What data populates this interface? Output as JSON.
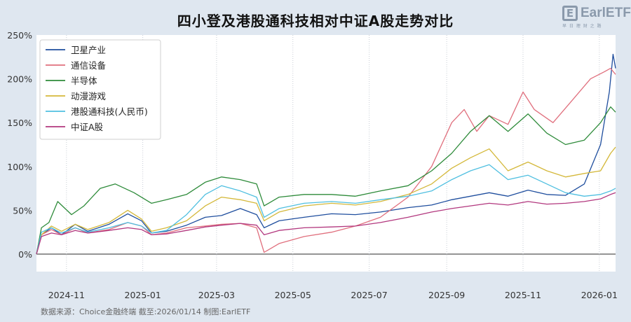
{
  "title": "四小登及港股通科技相对中证A股走势对比",
  "logo": {
    "mark": "E",
    "text": "EarlETF",
    "sub": "早 日 理 财 之 路"
  },
  "footer": "数据来源：Choice金融终端 截至:2026/01/14 制图:EarlETF",
  "chart_data": {
    "type": "line",
    "title": "四小登及港股通科技相对中证A股走势对比",
    "xlabel": "",
    "ylabel": "",
    "x_ticks": [
      "2024-11",
      "2025-01",
      "2025-03",
      "2025-05",
      "2025-07",
      "2025-09",
      "2025-11",
      "2026-01"
    ],
    "x_range": [
      "2024-10-08",
      "2026-01-14"
    ],
    "ylim": [
      -20,
      250
    ],
    "y_ticks": [
      "0%",
      "50%",
      "100%",
      "150%",
      "200%",
      "250%"
    ],
    "y_tick_values": [
      0,
      50,
      100,
      150,
      200,
      250
    ],
    "grid": false,
    "legend_position": "top-left",
    "series": [
      {
        "name": "卫星产业",
        "color": "#1f4e9e",
        "points": [
          [
            "2024-10-08",
            0
          ],
          [
            "2024-10-12",
            22
          ],
          [
            "2024-10-20",
            30
          ],
          [
            "2024-10-28",
            22
          ],
          [
            "2024-11-08",
            34
          ],
          [
            "2024-11-18",
            26
          ],
          [
            "2024-12-05",
            34
          ],
          [
            "2024-12-20",
            46
          ],
          [
            "2024-12-31",
            38
          ],
          [
            "2025-01-08",
            24
          ],
          [
            "2025-01-20",
            26
          ],
          [
            "2025-02-05",
            33
          ],
          [
            "2025-02-20",
            42
          ],
          [
            "2025-03-05",
            44
          ],
          [
            "2025-03-20",
            52
          ],
          [
            "2025-04-02",
            45
          ],
          [
            "2025-04-08",
            30
          ],
          [
            "2025-04-20",
            38
          ],
          [
            "2025-05-10",
            42
          ],
          [
            "2025-06-01",
            46
          ],
          [
            "2025-06-20",
            45
          ],
          [
            "2025-07-10",
            48
          ],
          [
            "2025-08-01",
            53
          ],
          [
            "2025-08-20",
            56
          ],
          [
            "2025-09-05",
            62
          ],
          [
            "2025-09-20",
            66
          ],
          [
            "2025-10-05",
            70
          ],
          [
            "2025-10-20",
            66
          ],
          [
            "2025-11-05",
            73
          ],
          [
            "2025-11-20",
            68
          ],
          [
            "2025-12-05",
            67
          ],
          [
            "2025-12-20",
            80
          ],
          [
            "2026-01-02",
            125
          ],
          [
            "2026-01-09",
            185
          ],
          [
            "2026-01-12",
            228
          ],
          [
            "2026-01-14",
            212
          ]
        ]
      },
      {
        "name": "通信设备",
        "color": "#e06f7d",
        "points": [
          [
            "2024-10-08",
            0
          ],
          [
            "2024-10-12",
            22
          ],
          [
            "2024-10-20",
            28
          ],
          [
            "2024-10-28",
            22
          ],
          [
            "2024-11-08",
            30
          ],
          [
            "2024-11-18",
            24
          ],
          [
            "2024-12-05",
            28
          ],
          [
            "2024-12-20",
            36
          ],
          [
            "2024-12-31",
            32
          ],
          [
            "2025-01-08",
            22
          ],
          [
            "2025-01-20",
            24
          ],
          [
            "2025-02-05",
            30
          ],
          [
            "2025-02-20",
            32
          ],
          [
            "2025-03-05",
            34
          ],
          [
            "2025-03-20",
            35
          ],
          [
            "2025-04-02",
            30
          ],
          [
            "2025-04-08",
            2
          ],
          [
            "2025-04-20",
            12
          ],
          [
            "2025-05-10",
            20
          ],
          [
            "2025-06-01",
            25
          ],
          [
            "2025-06-20",
            32
          ],
          [
            "2025-07-10",
            42
          ],
          [
            "2025-08-01",
            65
          ],
          [
            "2025-08-20",
            100
          ],
          [
            "2025-09-05",
            150
          ],
          [
            "2025-09-15",
            165
          ],
          [
            "2025-09-25",
            140
          ],
          [
            "2025-10-05",
            158
          ],
          [
            "2025-10-20",
            148
          ],
          [
            "2025-11-01",
            185
          ],
          [
            "2025-11-10",
            165
          ],
          [
            "2025-11-25",
            150
          ],
          [
            "2025-12-10",
            175
          ],
          [
            "2025-12-25",
            200
          ],
          [
            "2026-01-05",
            208
          ],
          [
            "2026-01-10",
            212
          ],
          [
            "2026-01-14",
            205
          ]
        ]
      },
      {
        "name": "半导体",
        "color": "#2e8b3a",
        "points": [
          [
            "2024-10-08",
            0
          ],
          [
            "2024-10-12",
            30
          ],
          [
            "2024-10-18",
            36
          ],
          [
            "2024-10-25",
            60
          ],
          [
            "2024-11-05",
            45
          ],
          [
            "2024-11-15",
            55
          ],
          [
            "2024-11-28",
            75
          ],
          [
            "2024-12-10",
            80
          ],
          [
            "2024-12-25",
            70
          ],
          [
            "2025-01-08",
            58
          ],
          [
            "2025-01-20",
            62
          ],
          [
            "2025-02-05",
            68
          ],
          [
            "2025-02-20",
            82
          ],
          [
            "2025-03-05",
            88
          ],
          [
            "2025-03-20",
            85
          ],
          [
            "2025-04-02",
            80
          ],
          [
            "2025-04-08",
            55
          ],
          [
            "2025-04-20",
            65
          ],
          [
            "2025-05-10",
            68
          ],
          [
            "2025-06-01",
            68
          ],
          [
            "2025-06-20",
            66
          ],
          [
            "2025-07-10",
            72
          ],
          [
            "2025-08-01",
            78
          ],
          [
            "2025-08-20",
            95
          ],
          [
            "2025-09-05",
            115
          ],
          [
            "2025-09-20",
            140
          ],
          [
            "2025-10-05",
            158
          ],
          [
            "2025-10-20",
            140
          ],
          [
            "2025-11-05",
            160
          ],
          [
            "2025-11-20",
            138
          ],
          [
            "2025-12-05",
            125
          ],
          [
            "2025-12-20",
            130
          ],
          [
            "2026-01-02",
            150
          ],
          [
            "2026-01-10",
            168
          ],
          [
            "2026-01-14",
            162
          ]
        ]
      },
      {
        "name": "动漫游戏",
        "color": "#d4b83a",
        "points": [
          [
            "2024-10-08",
            0
          ],
          [
            "2024-10-12",
            22
          ],
          [
            "2024-10-20",
            32
          ],
          [
            "2024-10-28",
            26
          ],
          [
            "2024-11-08",
            34
          ],
          [
            "2024-11-18",
            28
          ],
          [
            "2024-12-05",
            36
          ],
          [
            "2024-12-20",
            50
          ],
          [
            "2024-12-31",
            40
          ],
          [
            "2025-01-08",
            26
          ],
          [
            "2025-01-20",
            30
          ],
          [
            "2025-02-05",
            38
          ],
          [
            "2025-02-20",
            55
          ],
          [
            "2025-03-05",
            65
          ],
          [
            "2025-03-20",
            62
          ],
          [
            "2025-04-02",
            58
          ],
          [
            "2025-04-08",
            38
          ],
          [
            "2025-04-20",
            48
          ],
          [
            "2025-05-10",
            55
          ],
          [
            "2025-06-01",
            58
          ],
          [
            "2025-06-20",
            56
          ],
          [
            "2025-07-10",
            60
          ],
          [
            "2025-08-01",
            68
          ],
          [
            "2025-08-20",
            80
          ],
          [
            "2025-09-05",
            98
          ],
          [
            "2025-09-20",
            110
          ],
          [
            "2025-10-05",
            120
          ],
          [
            "2025-10-20",
            95
          ],
          [
            "2025-11-05",
            105
          ],
          [
            "2025-11-20",
            95
          ],
          [
            "2025-12-05",
            88
          ],
          [
            "2025-12-20",
            92
          ],
          [
            "2026-01-02",
            95
          ],
          [
            "2026-01-10",
            115
          ],
          [
            "2026-01-14",
            122
          ]
        ]
      },
      {
        "name": "港股通科技(人民币)",
        "color": "#4fbfe0",
        "points": [
          [
            "2024-10-08",
            0
          ],
          [
            "2024-10-12",
            25
          ],
          [
            "2024-10-20",
            30
          ],
          [
            "2024-10-28",
            24
          ],
          [
            "2024-11-08",
            30
          ],
          [
            "2024-11-18",
            25
          ],
          [
            "2024-12-05",
            30
          ],
          [
            "2024-12-20",
            36
          ],
          [
            "2024-12-31",
            32
          ],
          [
            "2025-01-08",
            24
          ],
          [
            "2025-01-20",
            27
          ],
          [
            "2025-02-05",
            45
          ],
          [
            "2025-02-20",
            68
          ],
          [
            "2025-03-05",
            78
          ],
          [
            "2025-03-20",
            72
          ],
          [
            "2025-04-02",
            65
          ],
          [
            "2025-04-08",
            42
          ],
          [
            "2025-04-20",
            52
          ],
          [
            "2025-05-10",
            58
          ],
          [
            "2025-06-01",
            60
          ],
          [
            "2025-06-20",
            58
          ],
          [
            "2025-07-10",
            62
          ],
          [
            "2025-08-01",
            66
          ],
          [
            "2025-08-20",
            72
          ],
          [
            "2025-09-05",
            85
          ],
          [
            "2025-09-20",
            95
          ],
          [
            "2025-10-05",
            102
          ],
          [
            "2025-10-20",
            85
          ],
          [
            "2025-11-05",
            90
          ],
          [
            "2025-11-20",
            80
          ],
          [
            "2025-12-05",
            70
          ],
          [
            "2025-12-20",
            66
          ],
          [
            "2026-01-02",
            68
          ],
          [
            "2026-01-10",
            72
          ],
          [
            "2026-01-14",
            75
          ]
        ]
      },
      {
        "name": "中证A股",
        "color": "#b2377e",
        "points": [
          [
            "2024-10-08",
            0
          ],
          [
            "2024-10-12",
            20
          ],
          [
            "2024-10-20",
            24
          ],
          [
            "2024-10-28",
            22
          ],
          [
            "2024-11-08",
            27
          ],
          [
            "2024-11-18",
            24
          ],
          [
            "2024-12-05",
            27
          ],
          [
            "2024-12-20",
            30
          ],
          [
            "2024-12-31",
            28
          ],
          [
            "2025-01-08",
            22
          ],
          [
            "2025-01-20",
            23
          ],
          [
            "2025-02-05",
            27
          ],
          [
            "2025-02-20",
            31
          ],
          [
            "2025-03-05",
            33
          ],
          [
            "2025-03-20",
            35
          ],
          [
            "2025-04-02",
            33
          ],
          [
            "2025-04-08",
            22
          ],
          [
            "2025-04-20",
            27
          ],
          [
            "2025-05-10",
            30
          ],
          [
            "2025-06-01",
            31
          ],
          [
            "2025-06-20",
            32
          ],
          [
            "2025-07-10",
            36
          ],
          [
            "2025-08-01",
            42
          ],
          [
            "2025-08-20",
            48
          ],
          [
            "2025-09-05",
            52
          ],
          [
            "2025-09-20",
            55
          ],
          [
            "2025-10-05",
            58
          ],
          [
            "2025-10-20",
            56
          ],
          [
            "2025-11-05",
            60
          ],
          [
            "2025-11-20",
            57
          ],
          [
            "2025-12-05",
            58
          ],
          [
            "2025-12-20",
            60
          ],
          [
            "2026-01-02",
            63
          ],
          [
            "2026-01-10",
            68
          ],
          [
            "2026-01-14",
            70
          ]
        ]
      }
    ]
  }
}
